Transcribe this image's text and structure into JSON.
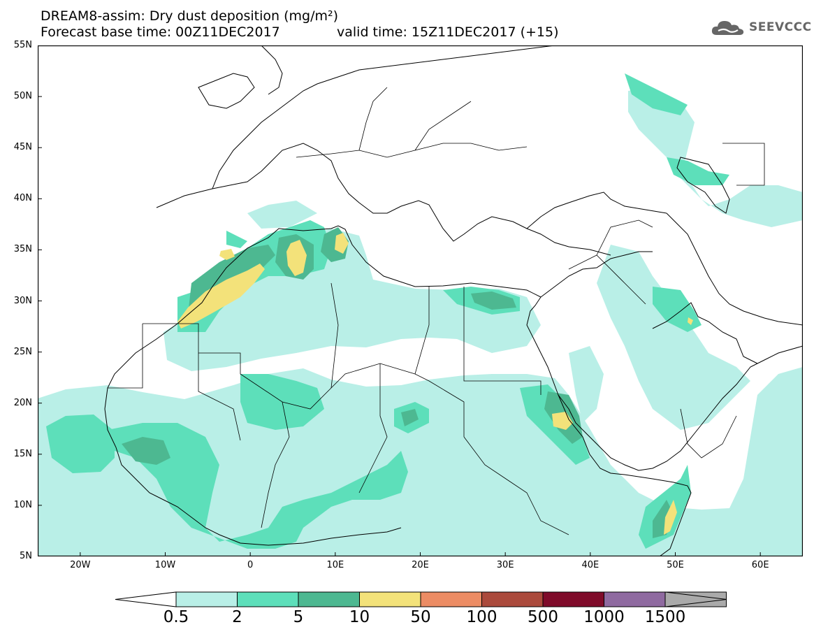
{
  "header": {
    "title_line1": "DREAM8-assim: Dry dust deposition (mg/m²)",
    "title_line2": "Forecast base time: 00Z11DEC2017",
    "valid_text": "valid time: 15Z11DEC2017 (+15)",
    "logo_text": "SEEVCCC"
  },
  "map": {
    "lat_labels": [
      "55N",
      "50N",
      "45N",
      "40N",
      "35N",
      "30N",
      "25N",
      "20N",
      "15N",
      "10N",
      "5N"
    ],
    "lon_labels": [
      "20W",
      "10W",
      "0",
      "10E",
      "20E",
      "30E",
      "40E",
      "50E",
      "60E"
    ],
    "lon_range": [
      -25,
      65
    ],
    "lat_range": [
      5,
      55
    ]
  },
  "legend": {
    "labels": [
      "0.5",
      "2",
      "5",
      "10",
      "50",
      "100",
      "500",
      "1000",
      "1500"
    ],
    "colors": [
      "#b9efe7",
      "#5ddfba",
      "#4db891",
      "#f3e27a",
      "#ec8c64",
      "#ab4a3c",
      "#7f0b2a",
      "#8f6aa0",
      "#aaaaaa"
    ]
  }
}
